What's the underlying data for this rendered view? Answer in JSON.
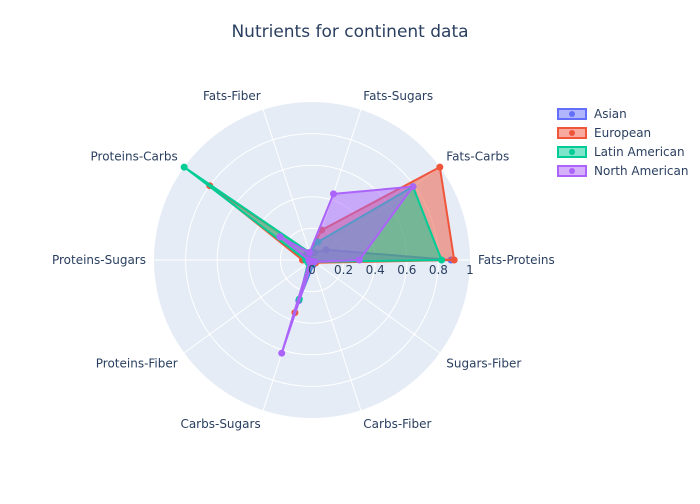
{
  "chart_data": {
    "type": "radar",
    "title": "Nutrients for continent data",
    "categories": [
      "Fats-Proteins",
      "Fats-Carbs",
      "Fats-Sugars",
      "Fats-Fiber",
      "Proteins-Carbs",
      "Proteins-Sugars",
      "Proteins-Fiber",
      "Carbs-Sugars",
      "Carbs-Fiber",
      "Sugars-Fiber"
    ],
    "radial_axis": {
      "range": [
        0,
        1
      ],
      "ticks": [
        "0",
        "0.2",
        "0.4",
        "0.6",
        "0.8",
        "1"
      ],
      "tick_values": [
        0,
        0.2,
        0.4,
        0.6,
        0.8,
        1
      ]
    },
    "grid": true,
    "legend_position": "top-right",
    "series": [
      {
        "name": "Asian",
        "color": "#636efa",
        "values": [
          0.88,
          0.11,
          0.05,
          0.04,
          0.05,
          0.01,
          0.03,
          0.27,
          0.03,
          0.02
        ]
      },
      {
        "name": "European",
        "color": "#EF553B",
        "values": [
          0.9,
          1.0,
          0.2,
          0.05,
          0.8,
          0.06,
          0.02,
          0.35,
          0.01,
          0.03
        ]
      },
      {
        "name": "Latin American",
        "color": "#00cc96",
        "values": [
          0.82,
          0.79,
          0.12,
          0.05,
          1.0,
          0.04,
          0.03,
          0.26,
          0.02,
          0.02
        ]
      },
      {
        "name": "North American",
        "color": "#ab63fa",
        "values": [
          0.3,
          0.79,
          0.44,
          0.05,
          0.25,
          0.02,
          0.02,
          0.62,
          0.01,
          0.02
        ]
      }
    ]
  }
}
